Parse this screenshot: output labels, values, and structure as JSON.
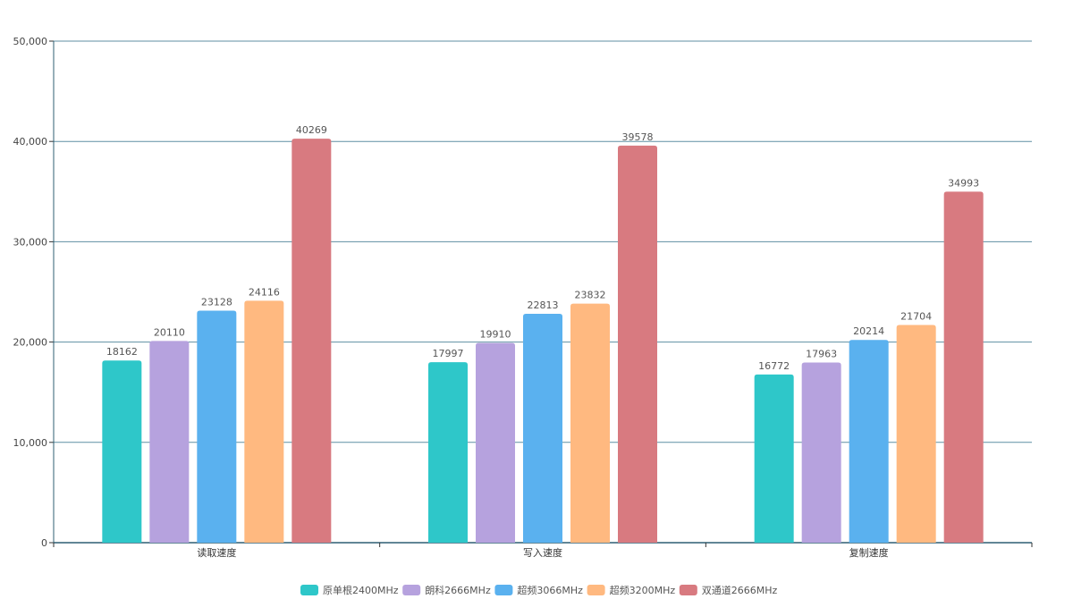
{
  "chart_data": {
    "type": "bar",
    "title": "",
    "xlabel": "",
    "ylabel": "",
    "categories": [
      "读取速度",
      "写入速度",
      "复制速度"
    ],
    "ylim": [
      0,
      50000
    ],
    "yticks": [
      0,
      10000,
      20000,
      30000,
      40000,
      50000
    ],
    "ytick_labels": [
      "0",
      "10,000",
      "20,000",
      "30,000",
      "40,000",
      "50,000"
    ],
    "grid": true,
    "legend_position": "bottom-center",
    "series": [
      {
        "name": "原单根2400MHz",
        "color": "#2ec7c9",
        "values": [
          18162,
          17997,
          16772
        ]
      },
      {
        "name": "朗科2666MHz",
        "color": "#b6a2de",
        "values": [
          20110,
          19910,
          17963
        ]
      },
      {
        "name": "超频3066MHz",
        "color": "#5ab1ef",
        "values": [
          23128,
          22813,
          20214
        ]
      },
      {
        "name": "超频3200MHz",
        "color": "#ffb980",
        "values": [
          24116,
          23832,
          21704
        ]
      },
      {
        "name": "双通道2666MHz",
        "color": "#d87a80",
        "values": [
          40269,
          39578,
          34993
        ]
      }
    ]
  }
}
